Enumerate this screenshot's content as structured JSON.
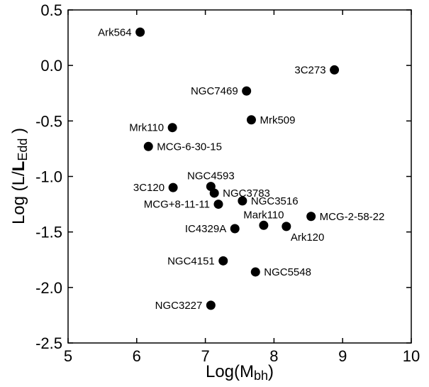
{
  "chart_data": {
    "type": "scatter",
    "xlabel": {
      "main": "Log(M",
      "sub": "bh",
      "close": ")"
    },
    "ylabel": {
      "pre": "Log (L/",
      "bold": "L",
      "sub": "Edd",
      "close": " )"
    },
    "xlim": [
      5,
      10
    ],
    "ylim": [
      -2.5,
      0.5
    ],
    "xticks": [
      5,
      6,
      7,
      8,
      9,
      10
    ],
    "xtick_labels": [
      "5",
      "6",
      "7",
      "8",
      "9",
      "10"
    ],
    "yticks": [
      0.5,
      0.0,
      -0.5,
      -1.0,
      -1.5,
      -2.0,
      -2.5
    ],
    "ytick_labels": [
      "0.5",
      "0.0",
      "-0.5",
      "-1.0",
      "-1.5",
      "-2.0",
      "-2.5"
    ],
    "grid": false,
    "points": [
      {
        "name": "Ark564",
        "x": 6.05,
        "y": 0.3,
        "label_side": "left"
      },
      {
        "name": "3C273",
        "x": 8.88,
        "y": -0.04,
        "label_side": "left"
      },
      {
        "name": "NGC7469",
        "x": 7.6,
        "y": -0.23,
        "label_side": "left"
      },
      {
        "name": "Mrk509",
        "x": 7.67,
        "y": -0.49,
        "label_side": "right"
      },
      {
        "name": "Mrk110",
        "x": 6.52,
        "y": -0.56,
        "label_side": "left"
      },
      {
        "name": "MCG-6-30-15",
        "x": 6.17,
        "y": -0.73,
        "label_side": "right"
      },
      {
        "name": "NGC4593",
        "x": 7.08,
        "y": -1.09,
        "label_side": "above"
      },
      {
        "name": "3C120",
        "x": 6.53,
        "y": -1.1,
        "label_side": "left"
      },
      {
        "name": "NGC3783",
        "x": 7.13,
        "y": -1.15,
        "label_side": "right"
      },
      {
        "name": "NGC3516",
        "x": 7.54,
        "y": -1.22,
        "label_side": "right"
      },
      {
        "name": "MCG+8-11-11",
        "x": 7.19,
        "y": -1.25,
        "label_side": "left"
      },
      {
        "name": "Mark110",
        "x": 7.85,
        "y": -1.44,
        "label_side": "above"
      },
      {
        "name": "MCG-2-58-22",
        "x": 8.54,
        "y": -1.36,
        "label_side": "right"
      },
      {
        "name": "IC4329A",
        "x": 7.43,
        "y": -1.47,
        "label_side": "left"
      },
      {
        "name": "Ark120",
        "x": 8.18,
        "y": -1.45,
        "label_side": "below-right"
      },
      {
        "name": "NGC4151",
        "x": 7.26,
        "y": -1.76,
        "label_side": "left"
      },
      {
        "name": "NGC5548",
        "x": 7.73,
        "y": -1.86,
        "label_side": "right"
      },
      {
        "name": "NGC3227",
        "x": 7.08,
        "y": -2.16,
        "label_side": "left"
      }
    ]
  }
}
